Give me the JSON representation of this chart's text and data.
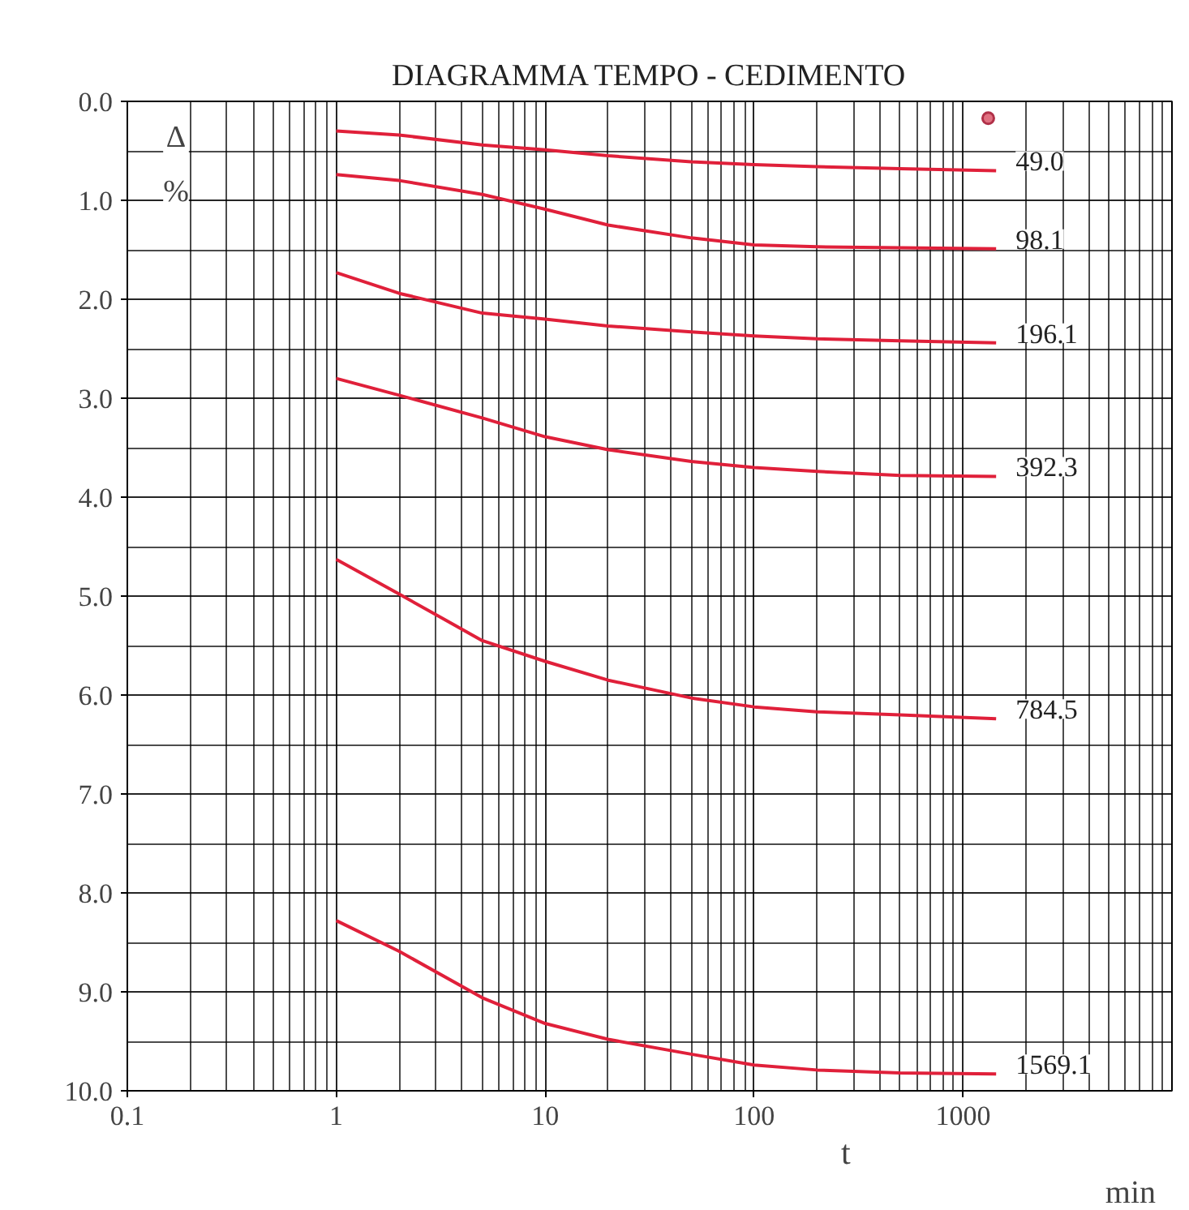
{
  "chart_data": {
    "type": "line",
    "title": "DIAGRAMMA TEMPO - CEDIMENTO",
    "xlabel": "t",
    "ylabel": "Δ\n%",
    "annotations": [
      "min"
    ],
    "log": "x",
    "grid": true,
    "marker": "none",
    "line_style": "solid",
    "x": [
      1,
      2,
      5,
      10,
      20,
      50,
      100,
      200,
      500,
      1440
    ],
    "xlim": [
      0.1,
      10000
    ],
    "xticks": [
      0.1,
      1,
      10,
      100,
      1000
    ],
    "ylim": [
      10,
      0
    ],
    "yticks": [
      {
        "value": 0,
        "label": "0.0"
      },
      {
        "value": 1,
        "label": "1.0"
      },
      {
        "value": 2,
        "label": "2.0"
      },
      {
        "value": 3,
        "label": "3.0"
      },
      {
        "value": 4,
        "label": "4.0"
      },
      {
        "value": 5,
        "label": "5.0"
      },
      {
        "value": 6,
        "label": "6.0"
      },
      {
        "value": 7,
        "label": "7.0"
      },
      {
        "value": 8,
        "label": "8.0"
      },
      {
        "value": 9,
        "label": "9.0"
      },
      {
        "value": 10,
        "label": "10.0"
      }
    ],
    "series": [
      {
        "name": "49.0",
        "color": "#e0203a",
        "values": [
          0.3,
          0.34,
          0.44,
          0.49,
          0.55,
          0.61,
          0.64,
          0.66,
          0.68,
          0.7
        ]
      },
      {
        "name": "98.1",
        "color": "#e0203a",
        "values": [
          0.74,
          0.8,
          0.94,
          1.09,
          1.25,
          1.38,
          1.45,
          1.47,
          1.48,
          1.49
        ]
      },
      {
        "name": "196.1",
        "color": "#e0203a",
        "values": [
          1.73,
          1.94,
          2.14,
          2.2,
          2.27,
          2.33,
          2.37,
          2.4,
          2.42,
          2.44
        ]
      },
      {
        "name": "392.3",
        "color": "#e0203a",
        "values": [
          2.8,
          2.97,
          3.2,
          3.39,
          3.52,
          3.64,
          3.7,
          3.74,
          3.78,
          3.79
        ]
      },
      {
        "name": "784.5",
        "color": "#e0203a",
        "values": [
          4.63,
          4.98,
          5.45,
          5.66,
          5.85,
          6.03,
          6.12,
          6.17,
          6.2,
          6.24
        ]
      },
      {
        "name": "1569.1",
        "color": "#e0203a",
        "values": [
          8.28,
          8.59,
          9.06,
          9.32,
          9.48,
          9.63,
          9.74,
          9.79,
          9.82,
          9.83
        ]
      },
      {
        "type": "scatter",
        "marker": "circle",
        "color": "#b03048",
        "x": [
          1320
        ],
        "values": [
          0.17
        ]
      }
    ]
  }
}
